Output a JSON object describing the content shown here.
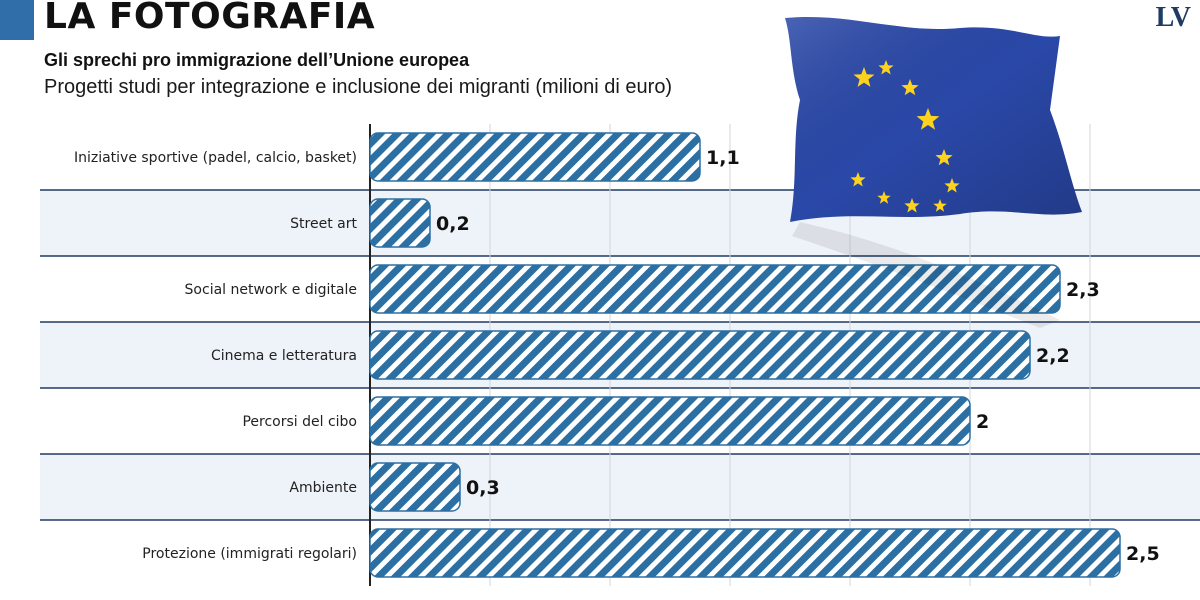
{
  "header": {
    "title": "LA FOTOGRAFIA",
    "subtitle": "Gli sprechi pro immigrazione dell’Unione europea",
    "description": "Progetti studi per integrazione e inclusione dei migranti (milioni di euro)",
    "logo": "LV"
  },
  "colors": {
    "accent": "#2f6ea8",
    "bar": "#2b6fa3",
    "band": "#eef2f9",
    "divider": "#1f3b63",
    "gridline": "#d2d5da",
    "flag_blue": "#2a48a8",
    "flag_star": "#ffd21e"
  },
  "chart_data": {
    "type": "bar",
    "orientation": "horizontal",
    "title": "Progetti studi per integrazione e inclusione dei migranti (milioni di euro)",
    "categories": [
      "Iniziative sportive (padel, calcio, basket)",
      "Street art",
      "Social network e digitale",
      "Cinema e letteratura",
      "Percorsi del cibo",
      "Ambiente",
      "Protezione (immigrati regolari)"
    ],
    "values": [
      1.1,
      0.2,
      2.3,
      2.2,
      2,
      0.3,
      2.5
    ],
    "value_labels": [
      "1,1",
      "0,2",
      "2,3",
      "2,2",
      "2",
      "0,3",
      "2,5"
    ],
    "xlim": [
      0,
      2.8
    ],
    "grid": true,
    "legend": "none"
  }
}
